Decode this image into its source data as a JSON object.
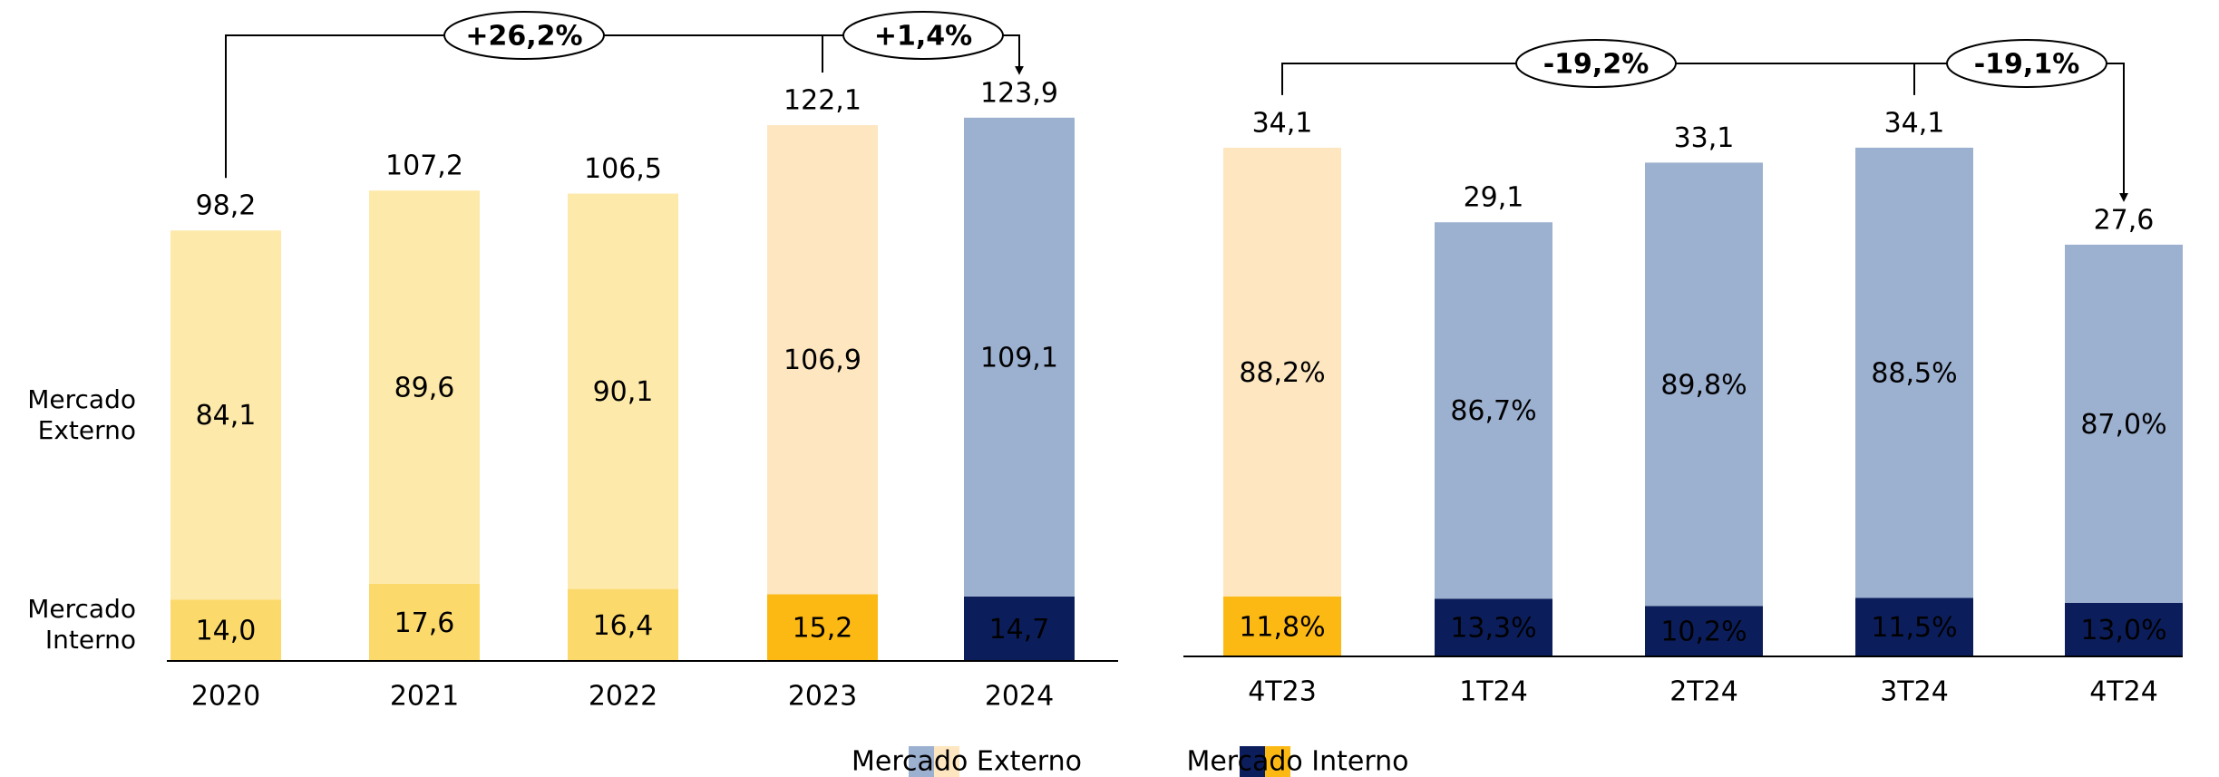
{
  "chart_data": [
    {
      "type": "stacked_bar",
      "categories": [
        "2020",
        "2021",
        "2022",
        "2023",
        "2024"
      ],
      "series": [
        {
          "name": "Mercado Interno",
          "colors": [
            "#fcd96b",
            "#fcd96b",
            "#fcd96b",
            "#fdb913",
            "#0b1e5b"
          ],
          "legend_colors": [
            "#0b1e5b",
            "#fdb913"
          ],
          "values": [
            14.0,
            17.6,
            16.4,
            15.2,
            14.7
          ],
          "value_labels": [
            "14,0",
            "17,6",
            "16,4",
            "15,2",
            "14,7"
          ]
        },
        {
          "name": "Mercado Externo",
          "colors": [
            "#fde9a9",
            "#fde9a9",
            "#fde9a9",
            "#fde6c0",
            "#9cb0d0"
          ],
          "legend_colors": [
            "#9cb0d0",
            "#fde6c0"
          ],
          "values": [
            84.1,
            89.6,
            90.1,
            106.9,
            109.1
          ],
          "value_labels": [
            "84,1",
            "89,6",
            "90,1",
            "106,9",
            "109,1"
          ]
        }
      ],
      "totals": [
        98.2,
        107.2,
        106.5,
        122.1,
        123.9
      ],
      "total_labels": [
        "98,2",
        "107,2",
        "106,5",
        "122,1",
        "123,9"
      ],
      "annotations": [
        "+26,2%",
        "+1,4%"
      ],
      "ylim": [
        0,
        150
      ]
    },
    {
      "type": "stacked_percent_bar",
      "categories": [
        "4T23",
        "1T24",
        "2T24",
        "3T24",
        "4T24"
      ],
      "series": [
        {
          "name": "Mercado Interno",
          "colors": [
            "#fdb913",
            "#0b1e5b",
            "#0b1e5b",
            "#0b1e5b",
            "#0b1e5b"
          ],
          "values": [
            11.8,
            13.3,
            10.2,
            11.5,
            13.0
          ],
          "value_labels": [
            "11,8%",
            "13,3%",
            "10,2%",
            "11,5%",
            "13,0%"
          ]
        },
        {
          "name": "Mercado Externo",
          "colors": [
            "#fde6c0",
            "#9cb0d0",
            "#9cb0d0",
            "#9cb0d0",
            "#9cb0d0"
          ],
          "values": [
            88.2,
            86.7,
            89.8,
            88.5,
            87.0
          ],
          "value_labels": [
            "88,2%",
            "86,7%",
            "89,8%",
            "88,5%",
            "87,0%"
          ]
        }
      ],
      "totals": [
        34.1,
        29.1,
        33.1,
        34.1,
        27.6
      ],
      "total_labels": [
        "34,1",
        "29,1",
        "33,1",
        "34,1",
        "27,6"
      ],
      "annotations": [
        "-19,2%",
        "-19,1%"
      ],
      "ylim": [
        0,
        44
      ]
    }
  ]
}
